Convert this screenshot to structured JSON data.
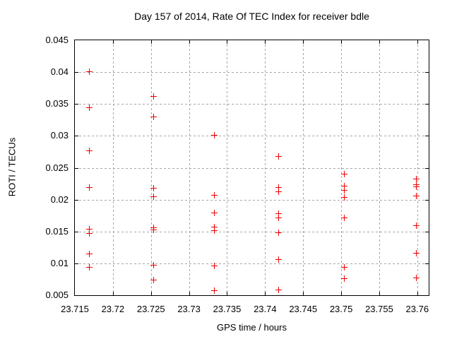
{
  "chart_data": {
    "type": "scatter",
    "title": "Day 157 of 2014, Rate Of TEC Index for receiver bdle",
    "xlabel": "GPS time / hours",
    "ylabel": "ROTI / TECUs",
    "xlim": [
      23.715,
      23.7615
    ],
    "ylim": [
      0.005,
      0.045
    ],
    "grid": true,
    "legend": "none",
    "marker": "plus",
    "marker_color": "#ee0000",
    "grid_color": "#a6a6a6",
    "xtick_values": [
      23.715,
      23.72,
      23.725,
      23.73,
      23.735,
      23.74,
      23.745,
      23.75,
      23.755,
      23.76
    ],
    "xtick_labels": [
      "23.715",
      "23.72",
      "23.725",
      "23.73",
      "23.735",
      "23.74",
      "23.745",
      "23.75",
      "23.755",
      "23.76"
    ],
    "ytick_values": [
      0.005,
      0.01,
      0.015,
      0.02,
      0.025,
      0.03,
      0.035,
      0.04,
      0.045
    ],
    "ytick_labels": [
      "0.005",
      "0.01",
      "0.015",
      "0.02",
      "0.025",
      "0.03",
      "0.035",
      "0.04",
      "0.045"
    ],
    "series": [
      {
        "name": "ROTI",
        "points": [
          [
            23.7169,
            0.0401
          ],
          [
            23.7169,
            0.0345
          ],
          [
            23.7169,
            0.0277
          ],
          [
            23.7169,
            0.0219
          ],
          [
            23.7169,
            0.0154
          ],
          [
            23.7169,
            0.0147
          ],
          [
            23.7169,
            0.0115
          ],
          [
            23.7169,
            0.0094
          ],
          [
            23.7253,
            0.0363
          ],
          [
            23.7253,
            0.033
          ],
          [
            23.7253,
            0.0218
          ],
          [
            23.7253,
            0.0205
          ],
          [
            23.7253,
            0.0156
          ],
          [
            23.7253,
            0.0153
          ],
          [
            23.7253,
            0.0098
          ],
          [
            23.7253,
            0.0074
          ],
          [
            23.7333,
            0.0301
          ],
          [
            23.7333,
            0.0207
          ],
          [
            23.7333,
            0.018
          ],
          [
            23.7333,
            0.0157
          ],
          [
            23.7333,
            0.0152
          ],
          [
            23.7333,
            0.0097
          ],
          [
            23.7333,
            0.0058
          ],
          [
            23.7417,
            0.0268
          ],
          [
            23.7417,
            0.0219
          ],
          [
            23.7417,
            0.0213
          ],
          [
            23.7417,
            0.0178
          ],
          [
            23.7417,
            0.0172
          ],
          [
            23.7417,
            0.0149
          ],
          [
            23.7417,
            0.0107
          ],
          [
            23.7417,
            0.0059
          ],
          [
            23.7504,
            0.0241
          ],
          [
            23.7504,
            0.0222
          ],
          [
            23.7504,
            0.0215
          ],
          [
            23.7504,
            0.0204
          ],
          [
            23.7504,
            0.0172
          ],
          [
            23.7504,
            0.0094
          ],
          [
            23.7504,
            0.0077
          ],
          [
            23.7598,
            0.0233
          ],
          [
            23.7598,
            0.0224
          ],
          [
            23.7598,
            0.0221
          ],
          [
            23.7598,
            0.0206
          ],
          [
            23.7598,
            0.016
          ],
          [
            23.7598,
            0.0116
          ],
          [
            23.7598,
            0.0078
          ]
        ]
      }
    ]
  }
}
